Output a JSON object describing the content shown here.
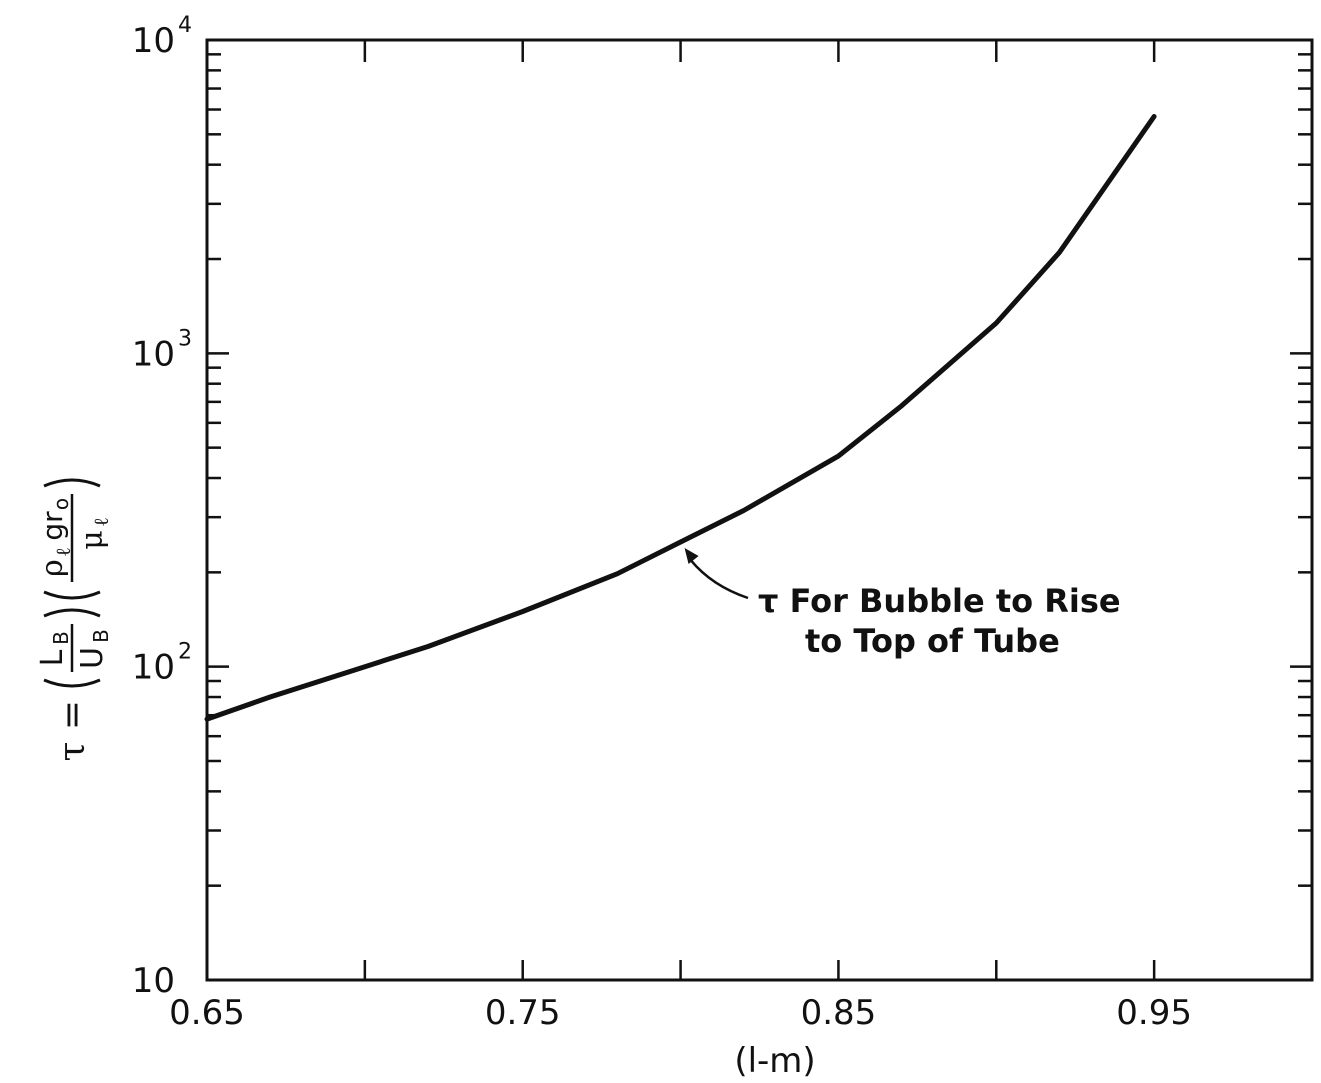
{
  "chart_data": {
    "type": "line",
    "y_scale": "log",
    "xlim": [
      0.65,
      1.0
    ],
    "ylim": [
      10,
      10000
    ],
    "x_ticks": [
      0.65,
      0.7,
      0.75,
      0.8,
      0.85,
      0.9,
      0.95,
      1.0
    ],
    "x_tick_labels": [
      {
        "x": 0.65,
        "label": "0.65"
      },
      {
        "x": 0.75,
        "label": "0.75"
      },
      {
        "x": 0.85,
        "label": "0.85"
      },
      {
        "x": 0.95,
        "label": "0.95"
      }
    ],
    "y_tick_labels": [
      {
        "y": 10,
        "base": "10",
        "exp": ""
      },
      {
        "y": 100,
        "base": "10",
        "exp": "2"
      },
      {
        "y": 1000,
        "base": "10",
        "exp": "3"
      },
      {
        "y": 10000,
        "base": "10",
        "exp": "4"
      }
    ],
    "xlabel": "(l-m)",
    "ylabel": {
      "lhs": "τ =",
      "frac1_num": "L",
      "frac1_num_sub": "B",
      "frac1_den": "U",
      "frac1_den_sub": "B",
      "frac2_num_rho": "ρ",
      "frac2_num_sub": "ℓ",
      "frac2_num_g": "gr",
      "frac2_num_sub2": "o",
      "frac2_den_mu": "μ",
      "frac2_den_sub": "ℓ"
    },
    "series": [
      {
        "x": [
          0.65,
          0.67,
          0.7,
          0.72,
          0.75,
          0.78,
          0.8,
          0.82,
          0.85,
          0.87,
          0.9,
          0.92,
          0.95
        ],
        "y": [
          68,
          80,
          100,
          116,
          150,
          198,
          250,
          315,
          470,
          680,
          1250,
          2100,
          5700
        ]
      }
    ],
    "annotation": {
      "line1": "τ For Bubble to Rise",
      "line2": "to Top of Tube",
      "arrow_target": {
        "x": 0.8,
        "y": 250
      }
    },
    "grid": false
  }
}
